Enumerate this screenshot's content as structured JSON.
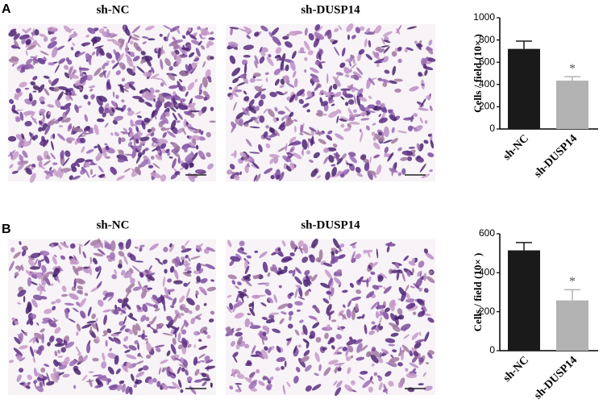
{
  "panels": [
    {
      "label": "A",
      "images": [
        "sh-NC",
        "sh-DUSP14"
      ]
    },
    {
      "label": "B",
      "images": [
        "sh-NC",
        "sh-DUSP14"
      ]
    }
  ],
  "chart_data": [
    {
      "type": "bar",
      "ylabel": "Cells / field (10× )",
      "categories": [
        "sh-NC",
        "sh-DUSP14"
      ],
      "values": [
        720,
        435
      ],
      "errors": [
        70,
        35
      ],
      "colors": [
        "#1a1a1a",
        "#b3b3b3"
      ],
      "ylim": [
        0,
        1000
      ],
      "yticks": [
        0,
        200,
        400,
        600,
        800,
        1000
      ],
      "annotation": "*"
    },
    {
      "type": "bar",
      "ylabel": "Cells / field (10× )",
      "categories": [
        "sh-NC",
        "sh-DUSP14"
      ],
      "values": [
        515,
        258
      ],
      "errors": [
        40,
        55
      ],
      "colors": [
        "#1a1a1a",
        "#b3b3b3"
      ],
      "ylim": [
        0,
        600
      ],
      "yticks": [
        0,
        200,
        400,
        600
      ],
      "annotation": "*"
    }
  ]
}
